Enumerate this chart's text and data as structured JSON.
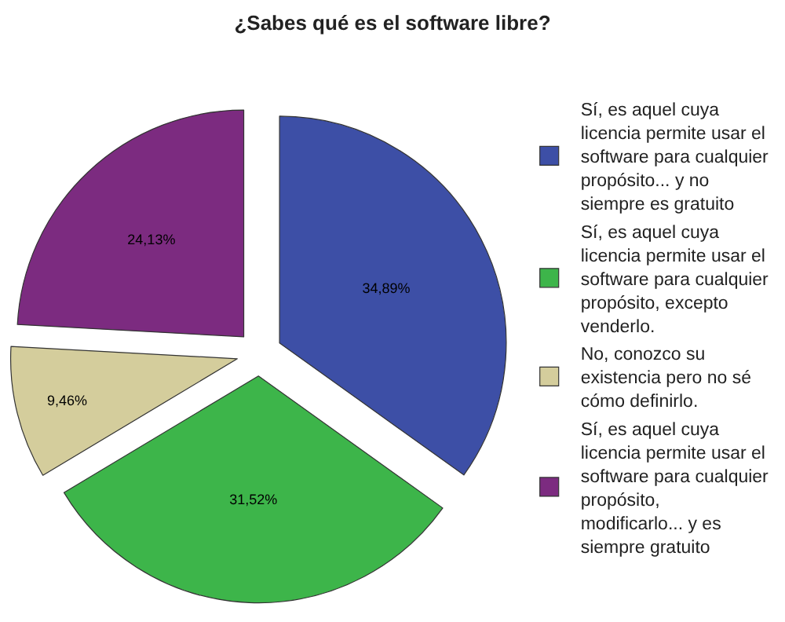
{
  "chart_data": {
    "type": "pie",
    "title": "¿Sabes qué es el software libre?",
    "categories": [
      "Sí, es aquel cuya licencia permite usar el software para cualquier propósito... y no siempre es gratuito",
      "Sí, es aquel cuya licencia permite usar el software para cualquier propósito, excepto venderlo.",
      "No, conozco su existencia pero no sé cómo definirlo.",
      "Sí, es aquel cuya licencia permite usar el software para cualquier propósito, modificarlo... y es siempre gratuito"
    ],
    "values": [
      34.89,
      31.52,
      9.46,
      24.13
    ],
    "value_labels": [
      "34,89%",
      "31,52%",
      "9,46%",
      "24,13%"
    ],
    "colors": [
      "#3d4fa6",
      "#3db54a",
      "#d4cd9c",
      "#7c2b80"
    ],
    "legend": "right"
  }
}
